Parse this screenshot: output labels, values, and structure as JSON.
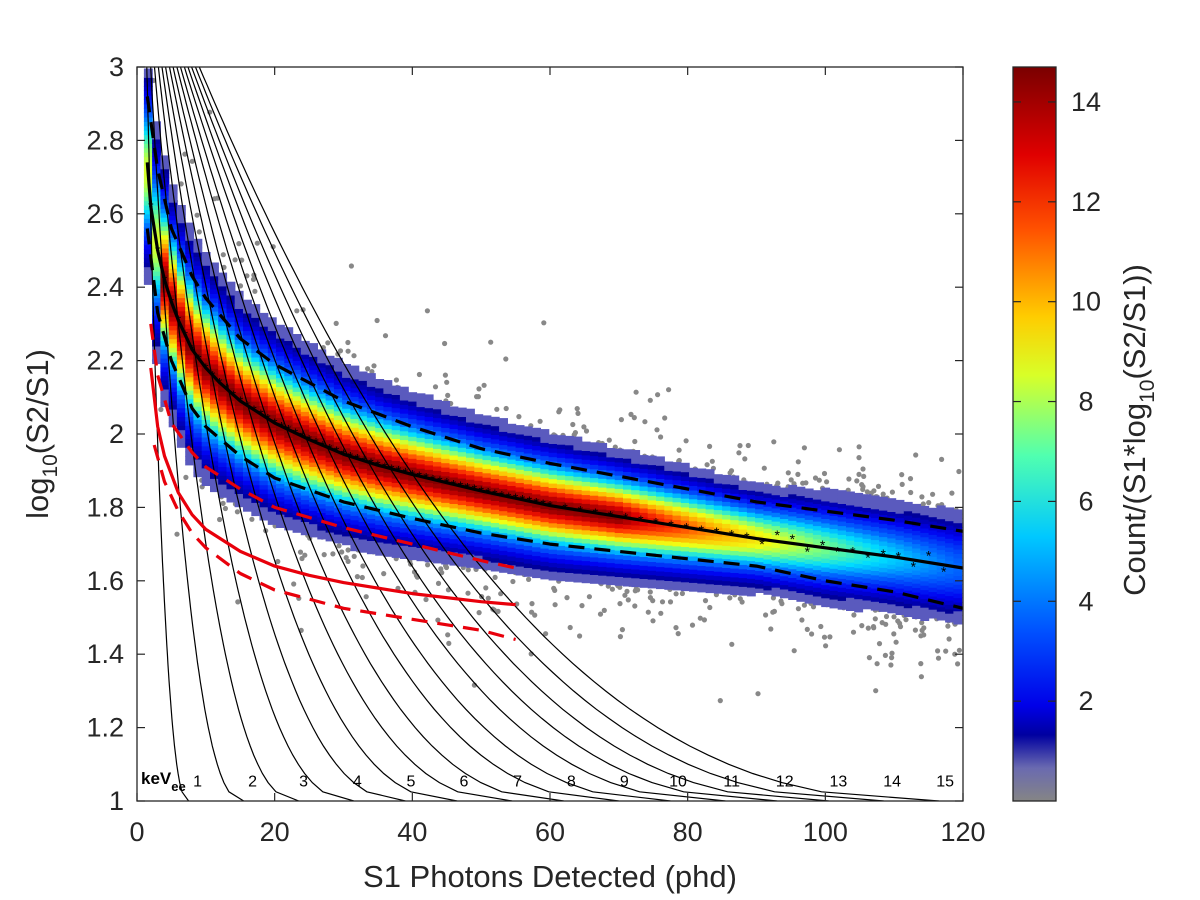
{
  "chart_data": {
    "type": "heatmap",
    "xlabel": "S1 Photons Detected (phd)",
    "ylabel": {
      "base": "log",
      "sub": "10",
      "rest": "(S2/S1)"
    },
    "xlim": [
      0,
      120
    ],
    "ylim": [
      1,
      3
    ],
    "x_ticks": [
      0,
      20,
      40,
      60,
      80,
      100,
      120
    ],
    "y_ticks": [
      1,
      1.2,
      1.4,
      1.6,
      1.8,
      2,
      2.2,
      2.4,
      2.6,
      2.8,
      3
    ],
    "y_tick_labels": [
      "1",
      "1.2",
      "1.4",
      "1.6",
      "1.8",
      "2",
      "2.2",
      "2.4",
      "2.6",
      "2.8",
      "3"
    ],
    "grid": false,
    "colorbar": {
      "label": {
        "pre": "Count/(S1*log",
        "sub": "10",
        "post": "(S2/S1))"
      },
      "range": [
        0,
        14.7
      ],
      "ticks": [
        2,
        4,
        6,
        8,
        10,
        12,
        14
      ],
      "colormap": "jet (grey for lowest counts)"
    },
    "energy_contours": {
      "unit_label": {
        "base": "keV",
        "sub": "ee"
      },
      "labels": [
        "1",
        "2",
        "3",
        "4",
        "5",
        "6",
        "7",
        "8",
        "9",
        "10",
        "11",
        "12",
        "13",
        "14",
        "15"
      ],
      "x_at_bottom": [
        7.5,
        15.5,
        23.5,
        31.5,
        39,
        46.5,
        54.5,
        62,
        70,
        77.5,
        85.5,
        93,
        100.5,
        108.5,
        116.5
      ],
      "label_x": [
        8.8,
        16.8,
        24.2,
        32,
        39.8,
        47.5,
        55.3,
        63.1,
        70.8,
        78.6,
        86.4,
        94.1,
        101.9,
        109.7,
        117.4
      ],
      "label_y": 1.04
    },
    "band_curves": [
      {
        "name": "",
        "style": "black solid with asterisk markers",
        "x": [
          1.5,
          2,
          3,
          4,
          5,
          6,
          8,
          10,
          12,
          15,
          20,
          25,
          30,
          35,
          40,
          50,
          60,
          70,
          80,
          90,
          100,
          110,
          120
        ],
        "y": [
          2.74,
          2.62,
          2.5,
          2.42,
          2.36,
          2.31,
          2.23,
          2.18,
          2.14,
          2.09,
          2.03,
          1.985,
          1.945,
          1.915,
          1.89,
          1.845,
          1.805,
          1.775,
          1.745,
          1.715,
          1.69,
          1.665,
          1.635
        ]
      },
      {
        "name": "",
        "style": "black dashed",
        "x": [
          1.5,
          3,
          5,
          8,
          10,
          15,
          20,
          30,
          40,
          50,
          60,
          70,
          80,
          90,
          100,
          110,
          120
        ],
        "y": [
          2.92,
          2.72,
          2.56,
          2.43,
          2.37,
          2.26,
          2.19,
          2.09,
          2.02,
          1.96,
          1.92,
          1.885,
          1.85,
          1.815,
          1.79,
          1.765,
          1.735
        ]
      },
      {
        "name": "",
        "style": "black dashed",
        "x": [
          1.5,
          3,
          5,
          8,
          10,
          15,
          20,
          30,
          40,
          50,
          60,
          70,
          80,
          90,
          100,
          110,
          120
        ],
        "y": [
          2.56,
          2.33,
          2.2,
          2.07,
          2.02,
          1.94,
          1.88,
          1.815,
          1.77,
          1.73,
          1.7,
          1.68,
          1.66,
          1.64,
          1.6,
          1.57,
          1.525
        ]
      },
      {
        "name": "",
        "style": "red solid",
        "x": [
          2,
          3,
          4,
          6,
          8,
          10,
          15,
          20,
          25,
          30,
          40,
          50,
          55
        ],
        "y": [
          2.18,
          2.02,
          1.94,
          1.84,
          1.78,
          1.74,
          1.68,
          1.64,
          1.615,
          1.595,
          1.565,
          1.543,
          1.535
        ]
      },
      {
        "name": "",
        "style": "red dashed",
        "x": [
          2.5,
          4,
          6,
          8,
          10,
          15,
          20,
          25,
          30,
          40,
          50,
          55
        ],
        "y": [
          1.97,
          1.87,
          1.79,
          1.73,
          1.69,
          1.62,
          1.575,
          1.55,
          1.525,
          1.495,
          1.465,
          1.44
        ]
      },
      {
        "name": "",
        "style": "red dashed",
        "x": [
          2,
          3,
          5,
          8,
          10,
          15,
          20,
          30,
          40,
          50,
          55
        ],
        "y": [
          2.3,
          2.16,
          2.03,
          1.95,
          1.91,
          1.85,
          1.8,
          1.745,
          1.7,
          1.655,
          1.635
        ]
      }
    ],
    "density_ridge": {
      "x": [
        1.5,
        2,
        3,
        4,
        5,
        6,
        8,
        10,
        12,
        15,
        20,
        25,
        30,
        35,
        40,
        50,
        60,
        70,
        80,
        90,
        100,
        110,
        120
      ],
      "y": [
        2.74,
        2.62,
        2.5,
        2.42,
        2.36,
        2.31,
        2.23,
        2.18,
        2.14,
        2.09,
        2.03,
        1.985,
        1.945,
        1.915,
        1.89,
        1.845,
        1.805,
        1.775,
        1.745,
        1.715,
        1.69,
        1.665,
        1.635
      ],
      "peak_count": 14.5
    }
  }
}
